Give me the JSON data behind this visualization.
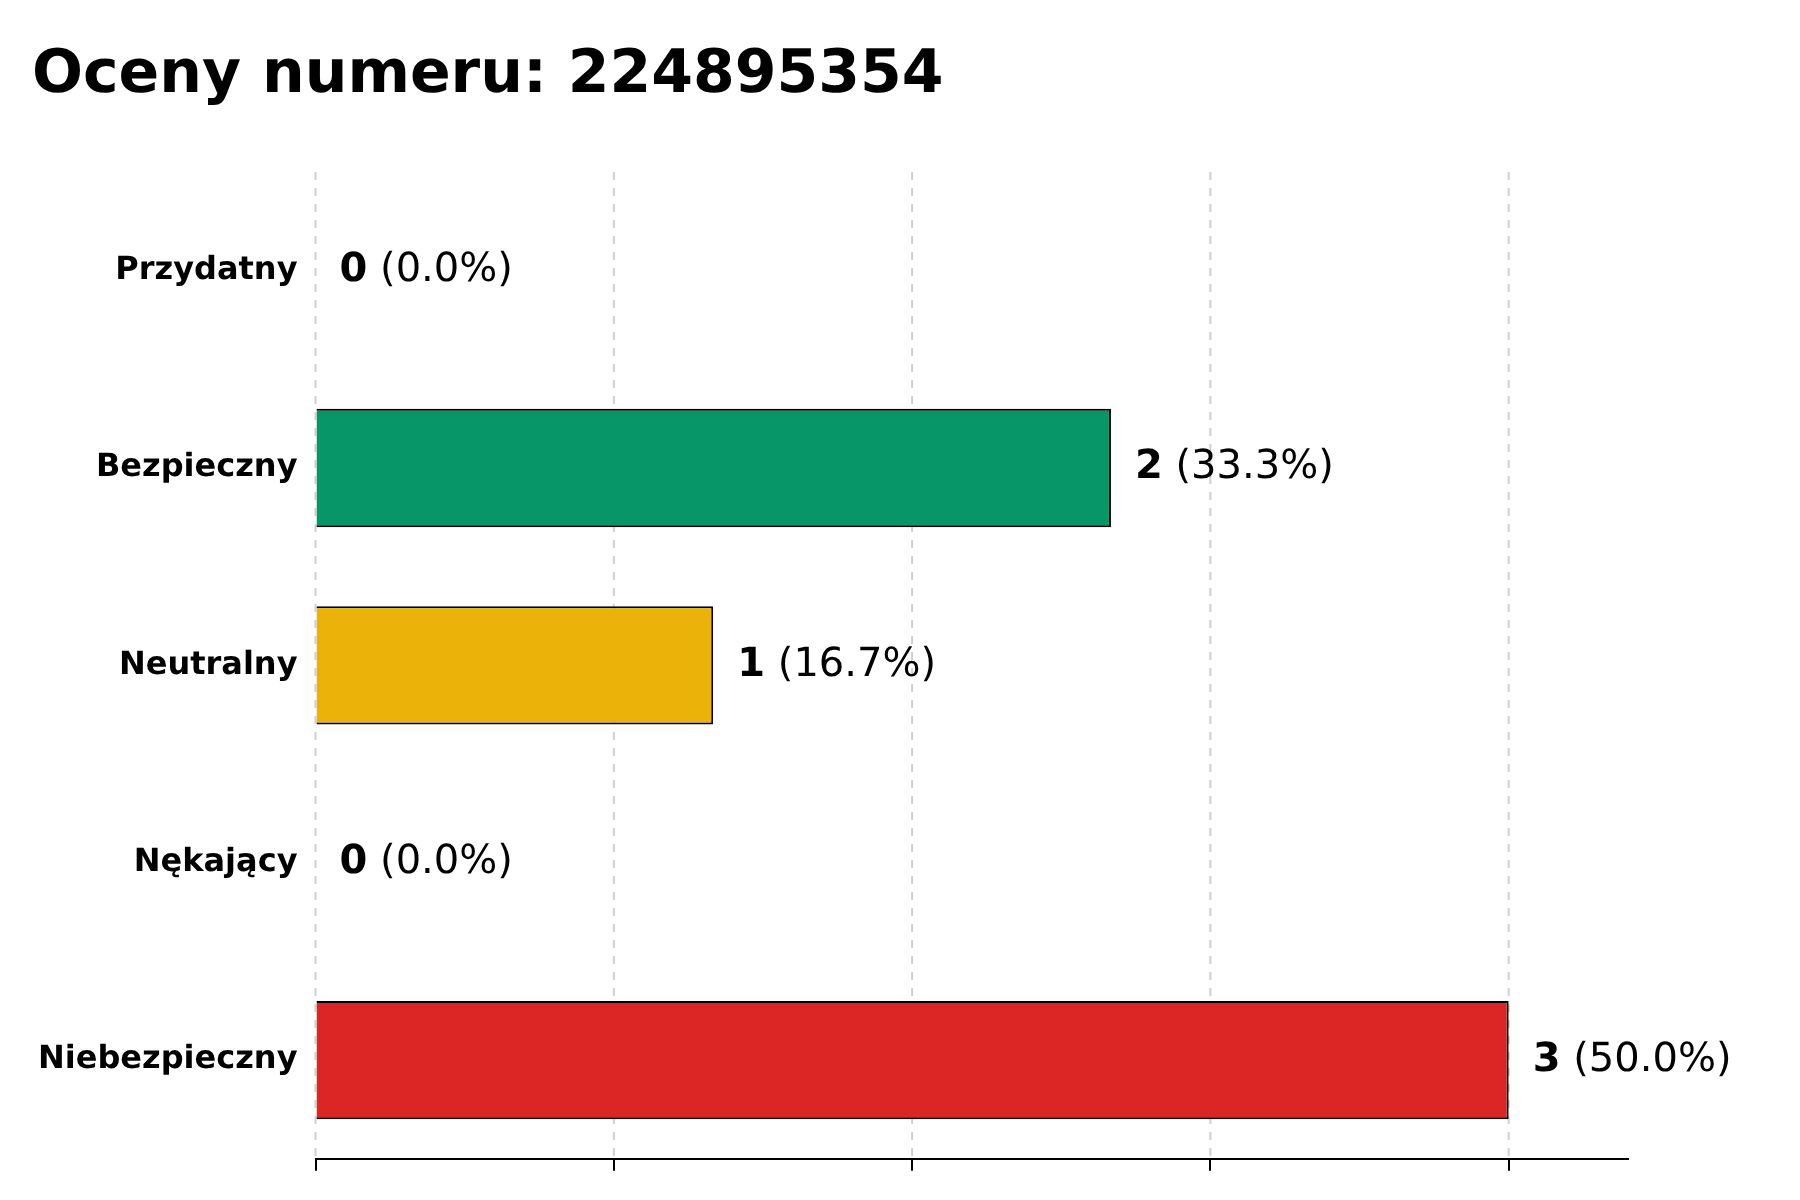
{
  "chart_data": {
    "type": "bar",
    "orientation": "horizontal",
    "title": "Oceny numeru: 224895354",
    "categories": [
      "Przydatny",
      "Bezpieczny",
      "Neutralny",
      "Nękający",
      "Niebezpieczny"
    ],
    "values": [
      0,
      2,
      1,
      0,
      3
    ],
    "colors": [
      "#8c8c8c",
      "#069668",
      "#ebb30a",
      "#8c8c8c",
      "#dc2626"
    ],
    "value_labels": [
      "0 (0.0%)",
      "2 (33.3%)",
      "1 (16.7%)",
      "0 (0.0%)",
      "3 (50.0%)"
    ],
    "xlim": [
      0,
      3.3
    ],
    "xticks": [
      {
        "value": 0,
        "label": null
      },
      {
        "value": 0.75,
        "label": null
      },
      {
        "value": 1.5,
        "label": null
      },
      {
        "value": 2.25,
        "label": null
      },
      {
        "value": 3,
        "label": null
      }
    ],
    "tick_labels": "y",
    "grid": "x",
    "legend": false
  }
}
